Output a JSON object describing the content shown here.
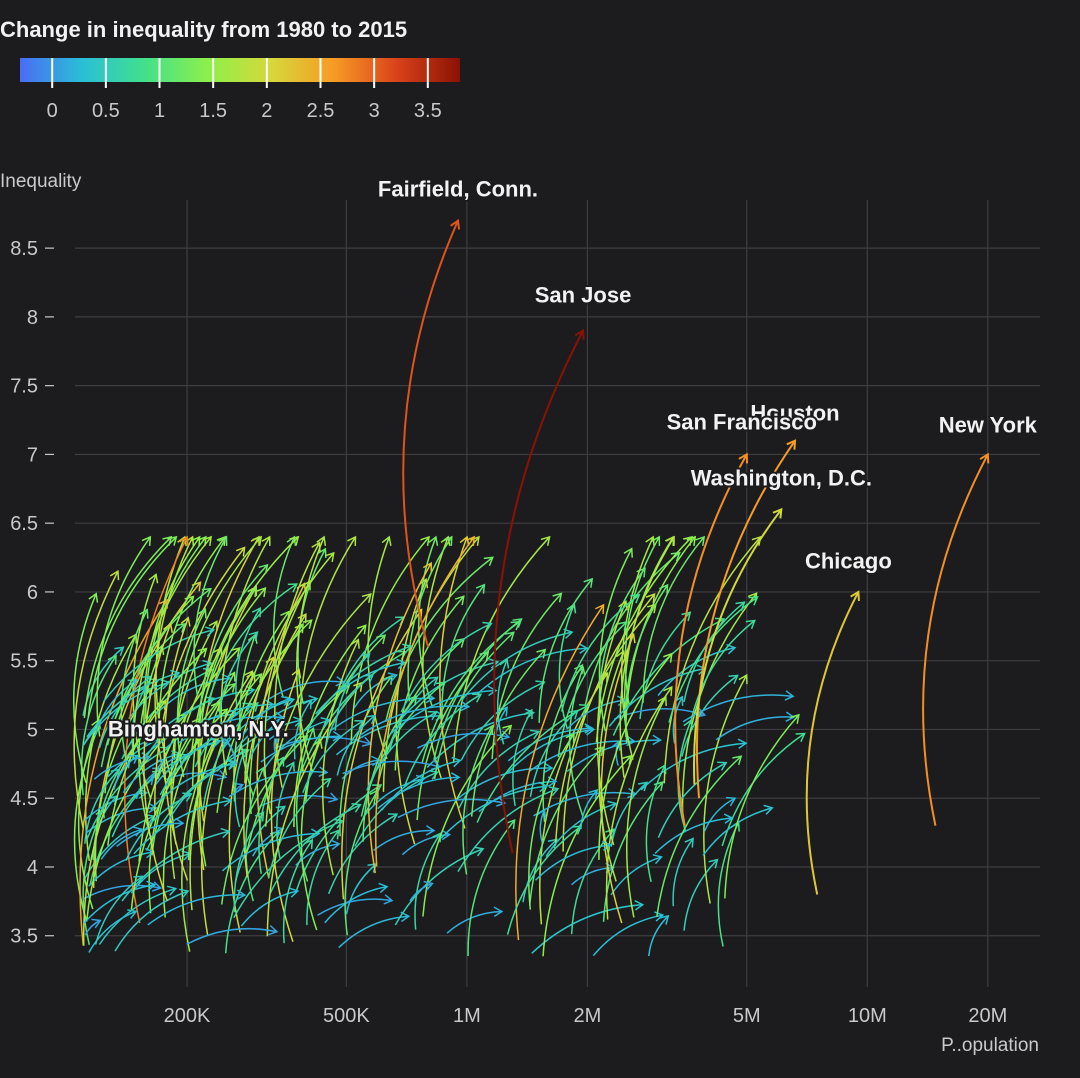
{
  "legend": {
    "title": "Change in inequality from 1980 to 2015",
    "ticks": [
      "0",
      "0.5",
      "1",
      "1.5",
      "2",
      "2.5",
      "3",
      "3.5"
    ],
    "domain": [
      -0.3,
      3.8
    ],
    "colors": [
      "#4a6cf5",
      "#29c0d6",
      "#43e08a",
      "#8df04a",
      "#d6d83a",
      "#f79a25",
      "#d9421a",
      "#8a1204"
    ]
  },
  "chart_data": {
    "type": "scatter",
    "title": "Change in inequality from 1980 to 2015",
    "xlabel": "P..opulation",
    "ylabel": "Inequality",
    "x_scale": "log",
    "xlim": [
      105000,
      27000000
    ],
    "ylim": [
      3.2,
      8.85
    ],
    "x_ticks": [
      {
        "value": 200000,
        "label": "200K"
      },
      {
        "value": 500000,
        "label": "500K"
      },
      {
        "value": 1000000,
        "label": "1M"
      },
      {
        "value": 2000000,
        "label": "2M"
      },
      {
        "value": 5000000,
        "label": "5M"
      },
      {
        "value": 10000000,
        "label": "10M"
      },
      {
        "value": 20000000,
        "label": "20M"
      }
    ],
    "y_ticks": [
      {
        "value": 3.5,
        "label": "3.5"
      },
      {
        "value": 4,
        "label": "4"
      },
      {
        "value": 4.5,
        "label": "4.5"
      },
      {
        "value": 5,
        "label": "5"
      },
      {
        "value": 5.5,
        "label": "5.5"
      },
      {
        "value": 6,
        "label": "6"
      },
      {
        "value": 6.5,
        "label": "6.5"
      },
      {
        "value": 7,
        "label": "7"
      },
      {
        "value": 7.5,
        "label": "7.5"
      },
      {
        "value": 8,
        "label": "8"
      },
      {
        "value": 8.5,
        "label": "8.5"
      }
    ],
    "grid": true,
    "labeled_metros": [
      {
        "name": "New York",
        "pop_1980": 14800000,
        "ineq_1980": 4.3,
        "pop_2015": 20000000,
        "ineq_2015": 7.0,
        "change": 2.7
      },
      {
        "name": "Houston",
        "pop_1980": 3800000,
        "ineq_1980": 4.5,
        "pop_2015": 6600000,
        "ineq_2015": 7.1,
        "change": 2.6
      },
      {
        "name": "San Francisco",
        "pop_1980": 3500000,
        "ineq_1980": 4.3,
        "pop_2015": 5000000,
        "ineq_2015": 7.0,
        "change": 2.7
      },
      {
        "name": "Washington, D.C.",
        "pop_1980": 3700000,
        "ineq_1980": 4.6,
        "pop_2015": 6100000,
        "ineq_2015": 6.6,
        "change": 2.0
      },
      {
        "name": "Chicago",
        "pop_1980": 7500000,
        "ineq_1980": 3.8,
        "pop_2015": 9500000,
        "ineq_2015": 6.0,
        "change": 2.2
      },
      {
        "name": "San Jose",
        "pop_1980": 1300000,
        "ineq_1980": 4.1,
        "pop_2015": 1950000,
        "ineq_2015": 7.9,
        "change": 3.8
      },
      {
        "name": "Fairfield, Conn.",
        "pop_1980": 800000,
        "ineq_1980": 5.6,
        "pop_2015": 950000,
        "ineq_2015": 8.7,
        "change": 3.1
      },
      {
        "name": "Binghamton, N.Y.",
        "pop_1980": 265000,
        "ineq_1980": 4.75,
        "pop_2015": 245000,
        "ineq_2015": 4.95,
        "change": 0.2
      }
    ],
    "other_metros_note": "Several hundred additional unlabeled metros drawn as arrows from 1980 to 2015 position."
  }
}
